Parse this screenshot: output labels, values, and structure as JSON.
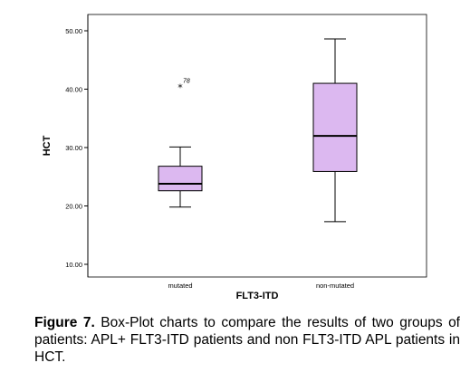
{
  "chart_data": {
    "type": "boxplot",
    "xlabel": "FLT3-ITD",
    "ylabel": "HCT",
    "ylim": [
      8,
      52
    ],
    "yticks": [
      10,
      20,
      30,
      40,
      50
    ],
    "ytick_labels": [
      "10.00",
      "20.00",
      "30.00",
      "40.00",
      "50.00"
    ],
    "categories": [
      "mutated",
      "non-mutated"
    ],
    "boxes": [
      {
        "category": "mutated",
        "min": 19.8,
        "q1": 22.6,
        "median": 23.8,
        "q3": 26.8,
        "max": 30.1,
        "outliers": [
          {
            "value": 40.5,
            "label": "78",
            "marker": "*"
          }
        ]
      },
      {
        "category": "non-mutated",
        "min": 17.3,
        "q1": 25.9,
        "median": 32.0,
        "q3": 41.0,
        "max": 48.6,
        "outliers": []
      }
    ],
    "grid": false,
    "colors": {
      "box_fill": "#dcb8f0",
      "stroke": "#000000"
    }
  },
  "caption": {
    "label": "Figure 7.",
    "text": " Box-Plot charts to compare the results of two groups of patients: APL+ FLT3-ITD patients and non FLT3-ITD APL patients in HCT."
  }
}
